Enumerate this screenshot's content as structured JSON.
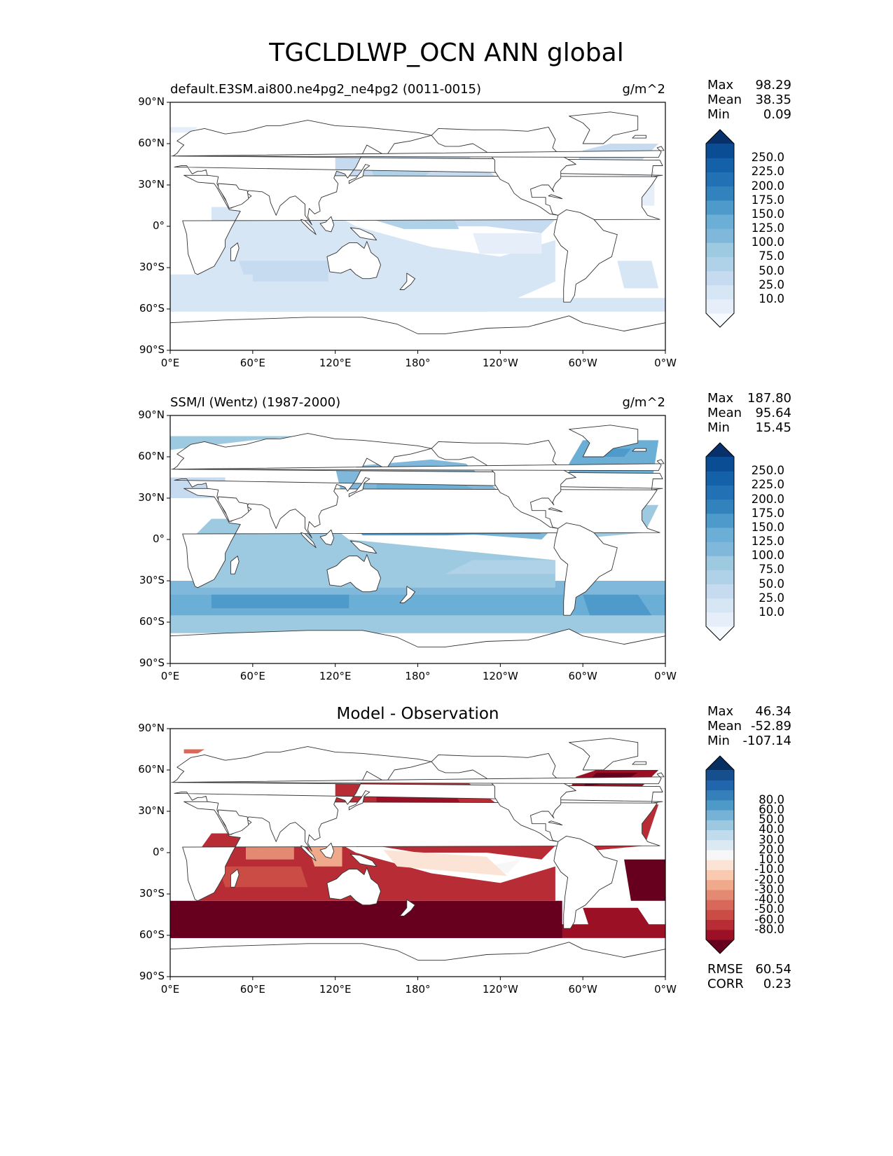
{
  "figure_title": "TGCLDLWP_OCN ANN global",
  "panels": [
    {
      "title": "default.E3SM.ai800.ne4pg2_ne4pg2 (0011-0015)",
      "units": "g/m^2",
      "stats": [
        {
          "label": "Max",
          "value": "98.29"
        },
        {
          "label": "Mean",
          "value": "38.35"
        },
        {
          "label": "Min",
          "value": "0.09"
        }
      ],
      "colorbar": {
        "colors": [
          "#f7fbff",
          "#e6eff9",
          "#d7e6f5",
          "#c6dbef",
          "#b0d2e8",
          "#9ecae1",
          "#7fb8da",
          "#6baed6",
          "#4e9acb",
          "#3282be",
          "#2271b5",
          "#1561a9",
          "#0b4d94",
          "#08306b"
        ],
        "ticks": [
          "10.0",
          "25.0",
          "50.0",
          "75.0",
          "100.0",
          "125.0",
          "150.0",
          "175.0",
          "200.0",
          "225.0",
          "250.0"
        ]
      }
    },
    {
      "title": "SSM/I (Wentz) (1987-2000)",
      "units": "g/m^2",
      "stats": [
        {
          "label": "Max",
          "value": "187.80"
        },
        {
          "label": "Mean",
          "value": "95.64"
        },
        {
          "label": "Min",
          "value": "15.45"
        }
      ],
      "colorbar": {
        "colors": [
          "#f7fbff",
          "#e6eff9",
          "#d7e6f5",
          "#c6dbef",
          "#b0d2e8",
          "#9ecae1",
          "#7fb8da",
          "#6baed6",
          "#4e9acb",
          "#3282be",
          "#2271b5",
          "#1561a9",
          "#0b4d94",
          "#08306b"
        ],
        "ticks": [
          "10.0",
          "25.0",
          "50.0",
          "75.0",
          "100.0",
          "125.0",
          "150.0",
          "175.0",
          "200.0",
          "225.0",
          "250.0"
        ]
      }
    },
    {
      "title": "Model - Observation",
      "units": "",
      "stats": [
        {
          "label": "Max",
          "value": "46.34"
        },
        {
          "label": "Mean",
          "value": "-52.89"
        },
        {
          "label": "Min",
          "value": "-107.14"
        }
      ],
      "extra_stats": [
        {
          "label": "RMSE",
          "value": "60.54"
        },
        {
          "label": "CORR",
          "value": "0.23"
        }
      ],
      "colorbar": {
        "colors": [
          "#67001f",
          "#9b1025",
          "#b82d35",
          "#cb4b45",
          "#d8695a",
          "#e58a72",
          "#f0a98b",
          "#f9c9b0",
          "#fbe3d6",
          "#f7f7f7",
          "#dbe9f2",
          "#c0dcec",
          "#9cc9e0",
          "#75b2d5",
          "#4d99c7",
          "#3580ba",
          "#2166ac",
          "#164f8e",
          "#053061"
        ],
        "ticks": [
          "-80.0",
          "-60.0",
          "-50.0",
          "-40.0",
          "-30.0",
          "-20.0",
          "-10.0",
          "10.0",
          "20.0",
          "30.0",
          "40.0",
          "50.0",
          "60.0",
          "80.0"
        ]
      }
    }
  ],
  "chart_data": [
    {
      "type": "heatmap",
      "title": "default.E3SM.ai800.ne4pg2_ne4pg2 (0011-0015)",
      "units": "g/m^2",
      "xlim": [
        0,
        360
      ],
      "ylim": [
        -90,
        90
      ],
      "x_ticks": [
        "0°E",
        "60°E",
        "120°E",
        "180°",
        "120°W",
        "60°W",
        "0°W"
      ],
      "y_ticks": [
        "90°N",
        "60°N",
        "30°N",
        "0°",
        "30°S",
        "60°S",
        "90°S"
      ],
      "color_levels": [
        10,
        25,
        50,
        75,
        100,
        125,
        150,
        175,
        200,
        225,
        250
      ],
      "max": 98.29,
      "mean": 38.35,
      "min": 0.09
    },
    {
      "type": "heatmap",
      "title": "SSM/I (Wentz) (1987-2000)",
      "units": "g/m^2",
      "xlim": [
        0,
        360
      ],
      "ylim": [
        -90,
        90
      ],
      "x_ticks": [
        "0°E",
        "60°E",
        "120°E",
        "180°",
        "120°W",
        "60°W",
        "0°W"
      ],
      "y_ticks": [
        "90°N",
        "60°N",
        "30°N",
        "0°",
        "30°S",
        "60°S",
        "90°S"
      ],
      "color_levels": [
        10,
        25,
        50,
        75,
        100,
        125,
        150,
        175,
        200,
        225,
        250
      ],
      "max": 187.8,
      "mean": 95.64,
      "min": 15.45
    },
    {
      "type": "heatmap",
      "title": "Model - Observation",
      "xlim": [
        0,
        360
      ],
      "ylim": [
        -90,
        90
      ],
      "x_ticks": [
        "0°E",
        "60°E",
        "120°E",
        "180°",
        "120°W",
        "60°W",
        "0°W"
      ],
      "y_ticks": [
        "90°N",
        "60°N",
        "30°N",
        "0°",
        "30°S",
        "60°S",
        "90°S"
      ],
      "color_levels": [
        -80,
        -60,
        -50,
        -40,
        -30,
        -20,
        -10,
        10,
        20,
        30,
        40,
        50,
        60,
        80
      ],
      "max": 46.34,
      "mean": -52.89,
      "min": -107.14,
      "rmse": 60.54,
      "corr": 0.23
    }
  ]
}
